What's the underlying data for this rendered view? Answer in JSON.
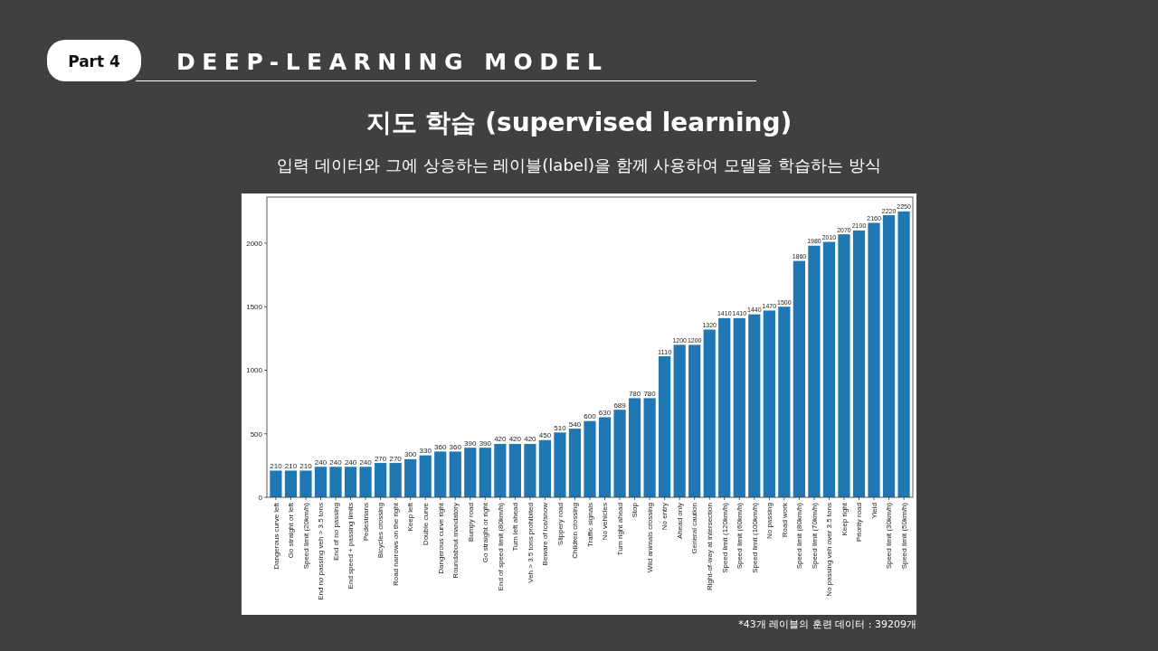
{
  "chart_data": {
    "type": "bar",
    "title": "지도 학습 (supervised learning)",
    "subtitle": "입력 데이터와 그에 상응하는 레이블(label)을 함께 사용하여 모델을 학습하는 방식",
    "annotations": [
      "Part 4",
      "DEEP-LEARNING MODEL",
      "*43개 레이블의 훈련 데이터 : 39209개"
    ],
    "categories": [
      "Dangerous curve left",
      "Go straight or left",
      "Speed limit (20km/h)",
      "End no passing veh > 3.5 tons",
      "End of no passing",
      "End speed + passing limits",
      "Pedestrians",
      "Bicycles crossing",
      "Road narrows on the right",
      "Keep left",
      "Double curve",
      "Dangerous curve right",
      "Roundabout mandatory",
      "Bumpy road",
      "Go straight or right",
      "End of speed limit (80km/h)",
      "Turn left ahead",
      "Veh > 3.5 tons prohibited",
      "Beware of ice/snow",
      "Slippery road",
      "Children crossing",
      "Traffic signals",
      "No vehicles",
      "Turn right ahead",
      "Stop",
      "Wild animals crossing",
      "No entry",
      "Ahead only",
      "General caution",
      "Right-of-way at intersection",
      "Speed limit (120km/h)",
      "Speed limit (60km/h)",
      "Speed limit (100km/h)",
      "No passing",
      "Road work",
      "Speed limit (80km/h)",
      "Speed limit (70km/h)",
      "No passing veh over 3.5 tons",
      "Keep right",
      "Priority road",
      "Yield",
      "Speed limit (30km/h)",
      "Speed limit (50km/h)"
    ],
    "values": [
      210,
      210,
      210,
      240,
      240,
      240,
      240,
      270,
      270,
      300,
      330,
      360,
      360,
      390,
      390,
      420,
      420,
      420,
      450,
      510,
      540,
      600,
      630,
      689,
      780,
      780,
      1110,
      1200,
      1200,
      1320,
      1410,
      1410,
      1440,
      1470,
      1500,
      1860,
      1980,
      2010,
      2070,
      2100,
      2160,
      2220,
      2250
    ],
    "color": "#1f77b4",
    "data_labels": true,
    "ylim": [
      0,
      2362.5
    ],
    "yticks": [
      0,
      500,
      1000,
      1500,
      2000
    ],
    "grid": false
  }
}
